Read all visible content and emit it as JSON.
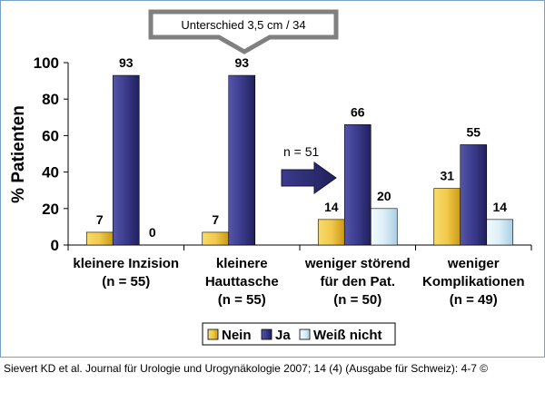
{
  "chart_data": {
    "type": "bar",
    "categories": [
      [
        "kleinere Inzision",
        "(n = 55)"
      ],
      [
        "kleinere",
        "Hauttasche",
        "(n = 55)"
      ],
      [
        "weniger störend",
        "für den Pat.",
        "(n = 50)"
      ],
      [
        "weniger",
        "Komplikationen",
        "(n = 49)"
      ]
    ],
    "series": [
      {
        "name": "Nein",
        "values": [
          7,
          7,
          14,
          31
        ],
        "value_labels": [
          "7",
          "7",
          "14",
          "31"
        ]
      },
      {
        "name": "Ja",
        "values": [
          93,
          93,
          66,
          55
        ],
        "value_labels": [
          "93",
          "93",
          "66",
          "55"
        ]
      },
      {
        "name": "Weiß nicht",
        "values": [
          0,
          null,
          20,
          14
        ],
        "value_labels": [
          "0",
          "",
          "20",
          "14"
        ]
      }
    ],
    "ylabel": "% Patienten",
    "ylim": [
      0,
      100
    ],
    "yticks": [
      0,
      20,
      40,
      60,
      80,
      100
    ],
    "grid": false,
    "legend_position": "bottom",
    "colors": {
      "Nein": "#f2c94c",
      "Ja": "#3b3b8c",
      "Weiß nicht": "#dbeef7"
    },
    "annotations": [
      {
        "type": "callout-box",
        "text": "Unterschied 3,5 cm / 34"
      },
      {
        "type": "arrow",
        "text": "n = 51"
      }
    ]
  },
  "caption": "Sievert KD et al. Journal für Urologie und Urogynäkologie 2007; 14 (4) (Ausgabe für Schweiz): 4-7 ©"
}
